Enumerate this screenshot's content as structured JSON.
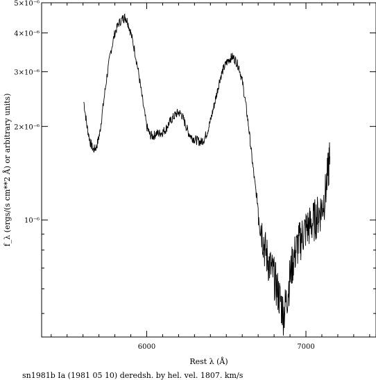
{
  "chart_data": {
    "type": "line",
    "xlabel": "Rest λ (Å)",
    "ylabel": "f_λ (ergs/(s cm**2 Å) or arbitrary units)",
    "caption": "sn1981b Ia (1981 05 10) deredsh. by hel. vel.  1807. km/s",
    "y_scale": "log",
    "xlim": [
      5340,
      7440
    ],
    "ylim": [
      4.2e-07,
      5e-06
    ],
    "x_ticks": [
      6000,
      7000
    ],
    "x_tick_labels": [
      "6000",
      "7000"
    ],
    "y_ticks": [
      1e-06,
      2e-06,
      3e-06,
      4e-06,
      5e-06
    ],
    "y_tick_labels": [
      "10⁻⁶",
      "2×10⁻⁶",
      "3×10⁻⁶",
      "4×10⁻⁶",
      "5×10⁻⁶"
    ],
    "grid": false,
    "series": [
      {
        "x": [
          5605,
          5625,
          5645,
          5665,
          5685,
          5705,
          5725,
          5750,
          5775,
          5800,
          5825,
          5850,
          5865,
          5880,
          5900,
          5925,
          5950,
          5975,
          6000,
          6020,
          6040,
          6060,
          6080,
          6100,
          6120,
          6140,
          6160,
          6180,
          6200,
          6220,
          6240,
          6260,
          6280,
          6300,
          6320,
          6340,
          6360,
          6380,
          6400,
          6420,
          6440,
          6460,
          6480,
          6500,
          6520,
          6540,
          6560,
          6580,
          6600,
          6620,
          6640,
          6660,
          6680,
          6700,
          6720,
          6740,
          6760,
          6780,
          6800,
          6820,
          6840,
          6860,
          6880,
          6900,
          6920,
          6940,
          6960,
          6980,
          7000,
          7020,
          7040,
          7060,
          7080,
          7100,
          7120,
          7140,
          7150
        ],
        "y": [
          2.4e-06,
          2e-06,
          1.78e-06,
          1.68e-06,
          1.72e-06,
          1.9e-06,
          2.3e-06,
          2.9e-06,
          3.5e-06,
          4e-06,
          4.3e-06,
          4.45e-06,
          4.5e-06,
          4.35e-06,
          4e-06,
          3.5e-06,
          2.95e-06,
          2.4e-06,
          2e-06,
          1.88e-06,
          1.86e-06,
          1.9e-06,
          1.9e-06,
          1.92e-06,
          1.96e-06,
          2.05e-06,
          2.12e-06,
          2.18e-06,
          2.22e-06,
          2.18e-06,
          2.05e-06,
          1.92e-06,
          1.85e-06,
          1.82e-06,
          1.8e-06,
          1.78e-06,
          1.82e-06,
          1.92e-06,
          2.08e-06,
          2.3e-06,
          2.55e-06,
          2.85e-06,
          3.05e-06,
          3.2e-06,
          3.3e-06,
          3.35e-06,
          3.25e-06,
          3.1e-06,
          2.8e-06,
          2.4e-06,
          2e-06,
          1.6e-06,
          1.3e-06,
          1.1e-06,
          9.5e-07,
          8.2e-07,
          7.5e-07,
          7e-07,
          6.6e-07,
          6e-07,
          5.5e-07,
          5e-07,
          5.6e-07,
          6.6e-07,
          7.5e-07,
          8.1e-07,
          8.6e-07,
          9e-07,
          9.4e-07,
          9.6e-07,
          9.8e-07,
          1.02e-06,
          1.05e-06,
          1.1e-06,
          1.2e-06,
          1.45e-06,
          1.6e-06
        ]
      }
    ]
  }
}
